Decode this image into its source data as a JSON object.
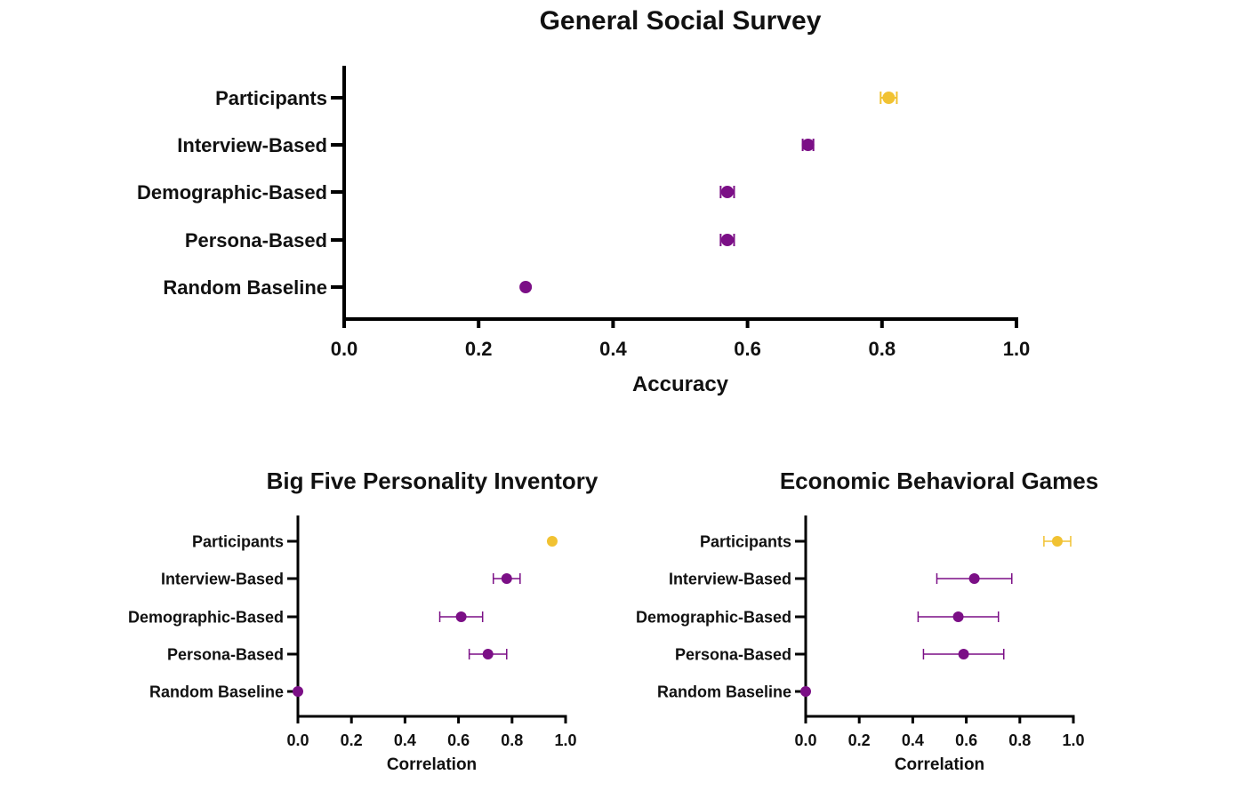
{
  "colors": {
    "participants": "#F1C232",
    "model": "#7B0F86",
    "axis": "#000000"
  },
  "chart_data": [
    {
      "type": "scatter",
      "title": "General Social Survey",
      "xlabel": "Accuracy",
      "ylabel": "",
      "xlim": [
        0,
        1
      ],
      "xticks": [
        "0.0",
        "0.2",
        "0.4",
        "0.6",
        "0.8",
        "1.0"
      ],
      "categories": [
        "Participants",
        "Interview-Based",
        "Demographic-Based",
        "Persona-Based",
        "Random Baseline"
      ],
      "values": [
        0.81,
        0.69,
        0.57,
        0.57,
        0.27
      ],
      "errors": [
        0.012,
        0.008,
        0.01,
        0.01,
        0
      ],
      "highlight": [
        true,
        false,
        false,
        false,
        false
      ]
    },
    {
      "type": "scatter",
      "title": "Big Five Personality Inventory",
      "xlabel": "Correlation",
      "ylabel": "",
      "xlim": [
        0,
        1
      ],
      "xticks": [
        "0.0",
        "0.2",
        "0.4",
        "0.6",
        "0.8",
        "1.0"
      ],
      "categories": [
        "Participants",
        "Interview-Based",
        "Demographic-Based",
        "Persona-Based",
        "Random Baseline"
      ],
      "values": [
        0.95,
        0.78,
        0.61,
        0.71,
        0.0
      ],
      "errors": [
        0,
        0.05,
        0.08,
        0.07,
        0
      ],
      "highlight": [
        true,
        false,
        false,
        false,
        false
      ]
    },
    {
      "type": "scatter",
      "title": "Economic Behavioral Games",
      "xlabel": "Correlation",
      "ylabel": "",
      "xlim": [
        0,
        1
      ],
      "xticks": [
        "0.0",
        "0.2",
        "0.4",
        "0.6",
        "0.8",
        "1.0"
      ],
      "categories": [
        "Participants",
        "Interview-Based",
        "Demographic-Based",
        "Persona-Based",
        "Random Baseline"
      ],
      "values": [
        0.94,
        0.63,
        0.57,
        0.59,
        0.0
      ],
      "errors": [
        0.05,
        0.14,
        0.15,
        0.15,
        0
      ],
      "highlight": [
        true,
        false,
        false,
        false,
        false
      ]
    }
  ]
}
